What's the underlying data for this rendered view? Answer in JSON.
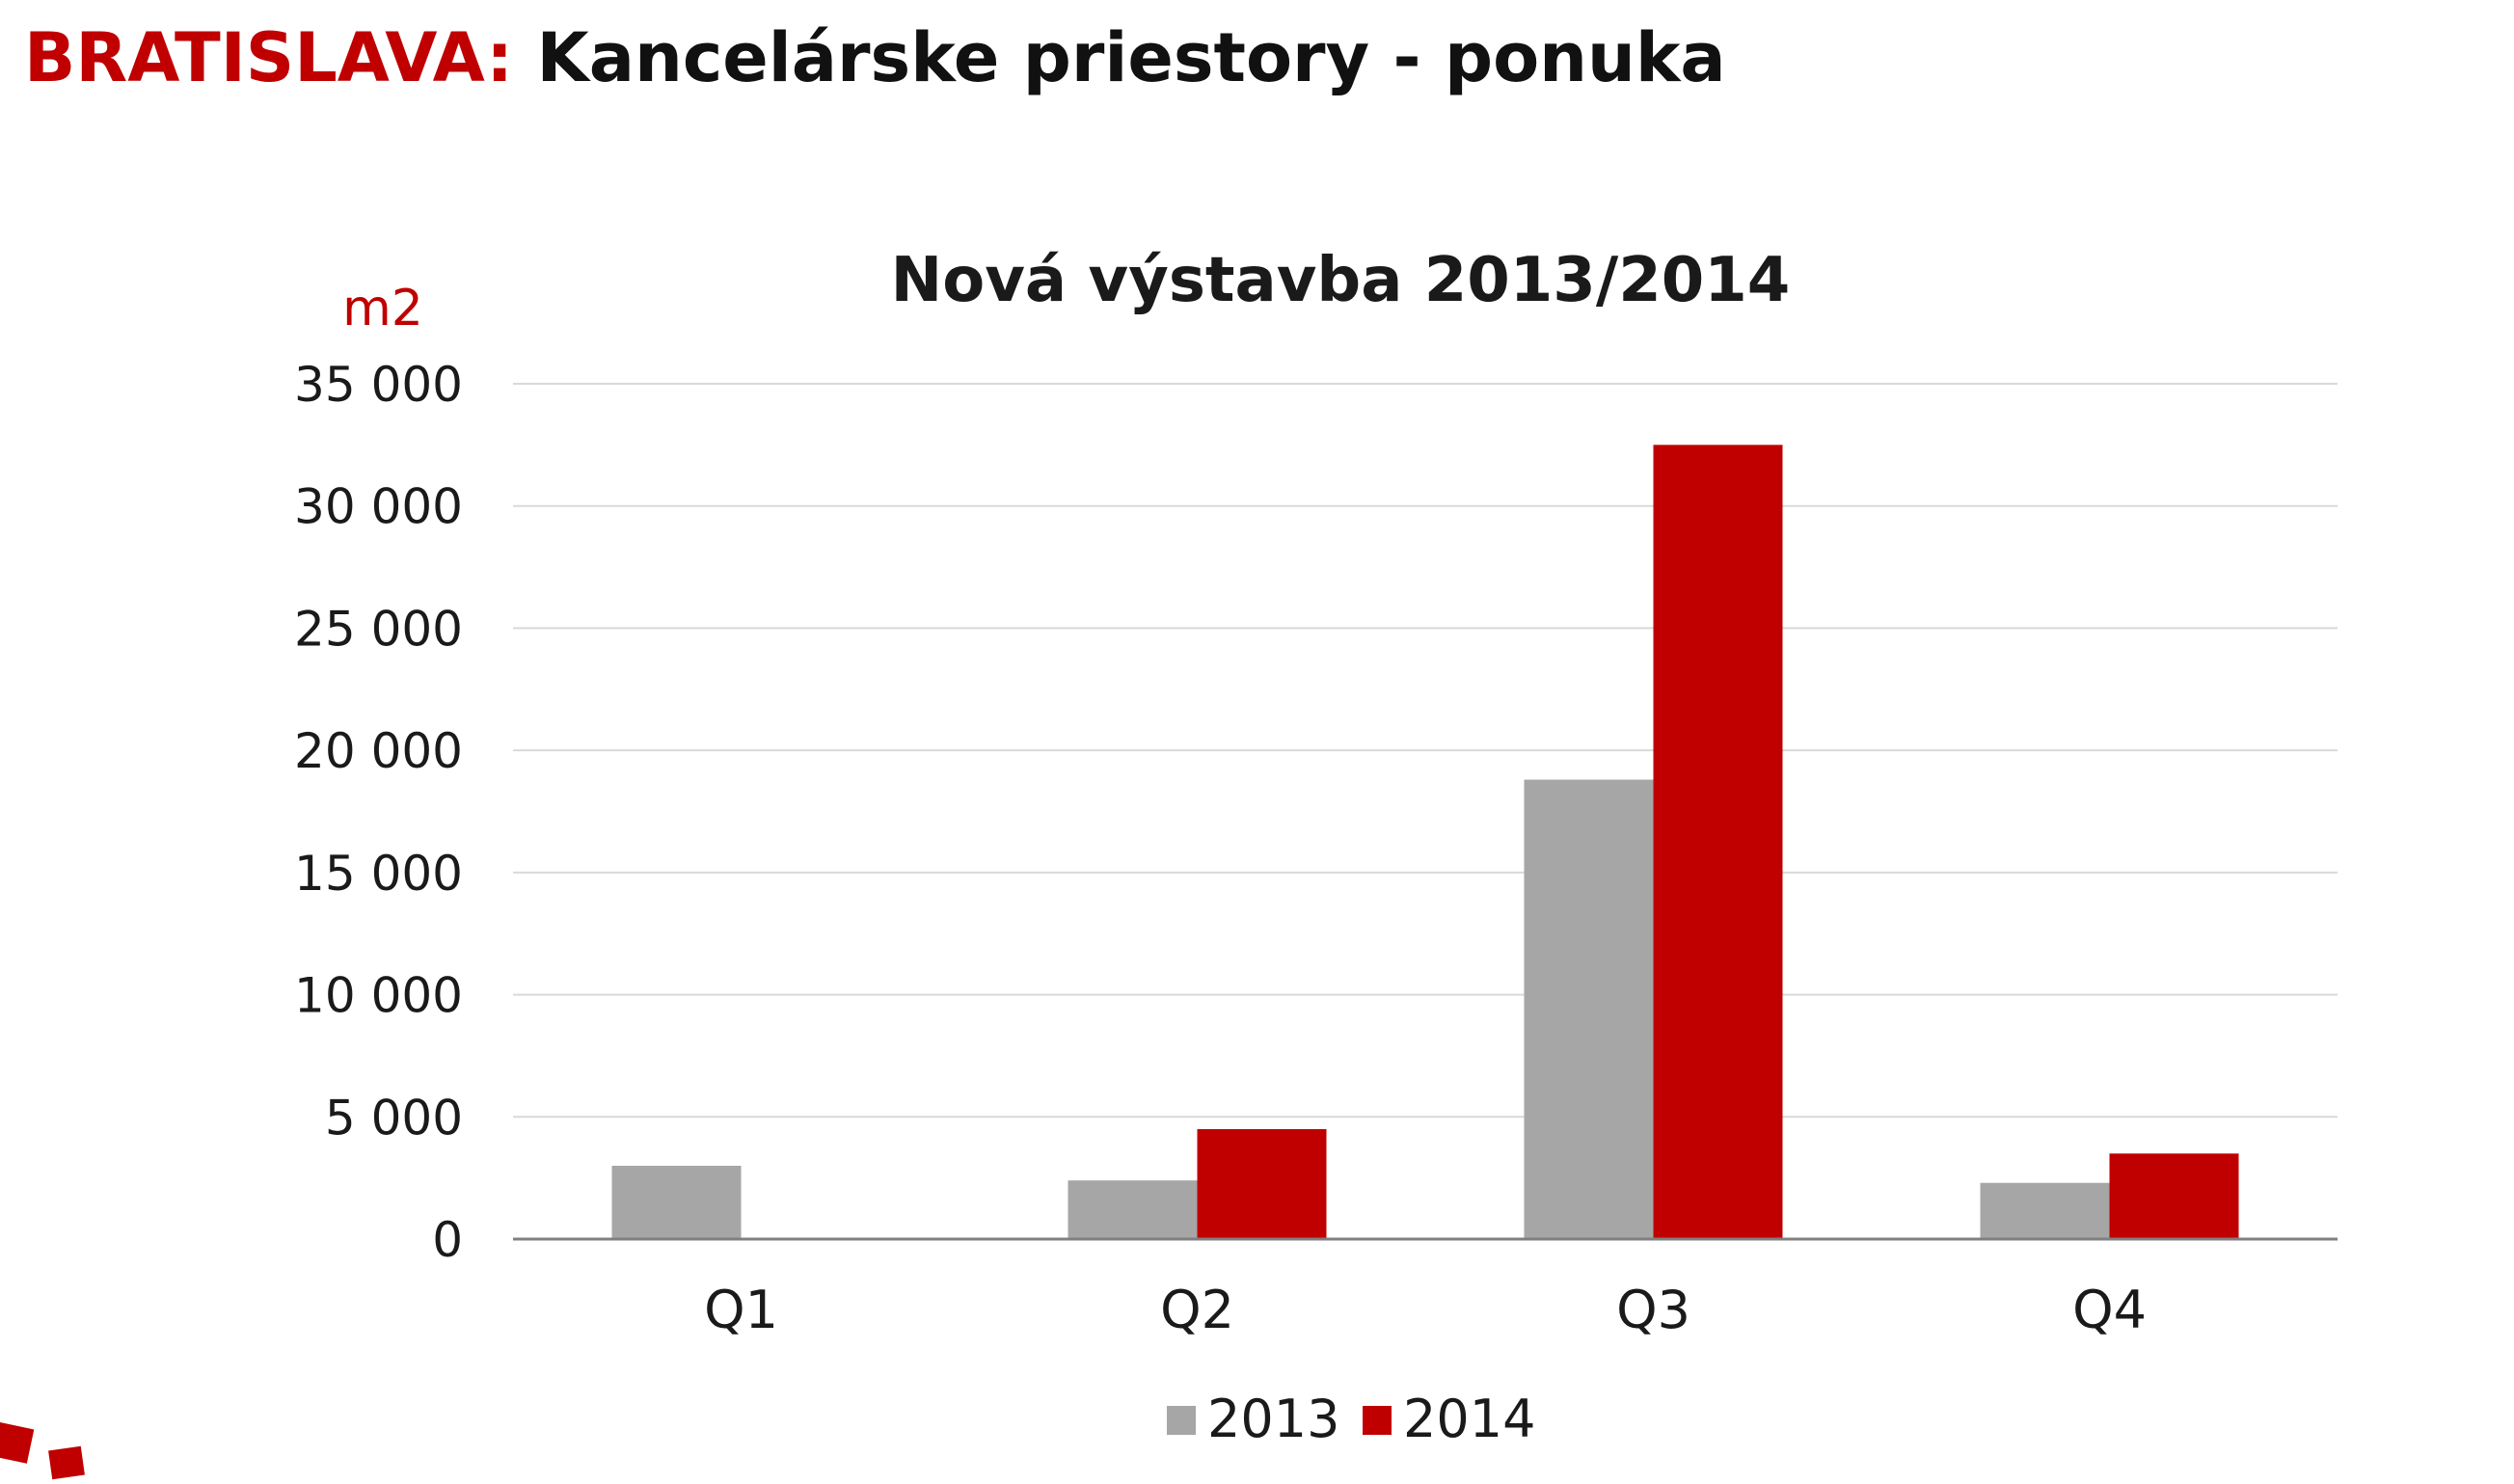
{
  "header": {
    "city": "BRATISLAVA:",
    "subject": "Kancelárske priestory - ponuka"
  },
  "colors": {
    "accent": "#c00000",
    "series_2013": "#a6a6a6",
    "series_2014": "#c00000",
    "grid": "#d9d9d9",
    "axis": "#808080",
    "text": "#1a1a1a"
  },
  "chart_data": {
    "type": "bar",
    "title": "Nová výstavba 2013/2014",
    "unit_label": "m2",
    "xlabel": "",
    "ylabel": "",
    "ylim": [
      0,
      35000
    ],
    "ytick_values": [
      0,
      5000,
      10000,
      15000,
      20000,
      25000,
      30000,
      35000
    ],
    "ytick_labels": [
      "0",
      "5 000",
      "10 000",
      "15 000",
      "20 000",
      "25 000",
      "30 000",
      "35 000"
    ],
    "grid": true,
    "legend_position": "bottom",
    "categories": [
      "Q1",
      "Q2",
      "Q3",
      "Q4"
    ],
    "series": [
      {
        "name": "2013",
        "color": "#a6a6a6",
        "values": [
          3000,
          2400,
          18800,
          2300
        ]
      },
      {
        "name": "2014",
        "color": "#c00000",
        "values": [
          0,
          4500,
          32500,
          3500
        ]
      }
    ]
  }
}
